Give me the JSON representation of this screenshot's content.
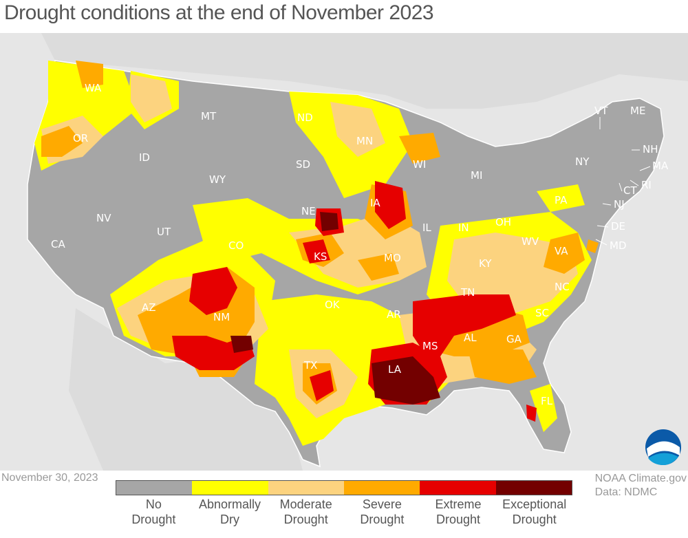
{
  "title": "Drought conditions at the end of November 2023",
  "date": "November 30, 2023",
  "credit": {
    "line1": "NOAA Climate.gov",
    "line2": "Data: NDMC"
  },
  "legend": [
    {
      "line1": "No",
      "line2": "Drought",
      "color": "#a6a6a6"
    },
    {
      "line1": "Abnormally",
      "line2": "Dry",
      "color": "#ffff00"
    },
    {
      "line1": "Moderate",
      "line2": "Drought",
      "color": "#fcd37f"
    },
    {
      "line1": "Severe",
      "line2": "Drought",
      "color": "#ffaa00"
    },
    {
      "line1": "Extreme",
      "line2": "Drought",
      "color": "#e60000"
    },
    {
      "line1": "Exceptional",
      "line2": "Drought",
      "color": "#730000"
    }
  ],
  "state_labels": {
    "WA": "WA",
    "OR": "OR",
    "CA": "CA",
    "NV": "NV",
    "ID": "ID",
    "MT": "MT",
    "WY": "WY",
    "UT": "UT",
    "AZ": "AZ",
    "CO": "CO",
    "NM": "NM",
    "ND": "ND",
    "SD": "SD",
    "NE": "NE",
    "KS": "KS",
    "OK": "OK",
    "TX": "TX",
    "MN": "MN",
    "IA": "IA",
    "MO": "MO",
    "AR": "AR",
    "LA": "LA",
    "WI": "WI",
    "IL": "IL",
    "MI": "MI",
    "IN": "IN",
    "OH": "OH",
    "KY": "KY",
    "TN": "TN",
    "MS": "MS",
    "AL": "AL",
    "GA": "GA",
    "FL": "FL",
    "SC": "SC",
    "NC": "NC",
    "VA": "VA",
    "WV": "WV",
    "PA": "PA",
    "NY": "NY",
    "VT": "VT",
    "NH": "NH",
    "ME": "ME",
    "MA": "MA",
    "RI": "RI",
    "CT": "CT",
    "NJ": "NJ",
    "DE": "DE",
    "MD": "MD"
  },
  "logo_text": "NOAA"
}
